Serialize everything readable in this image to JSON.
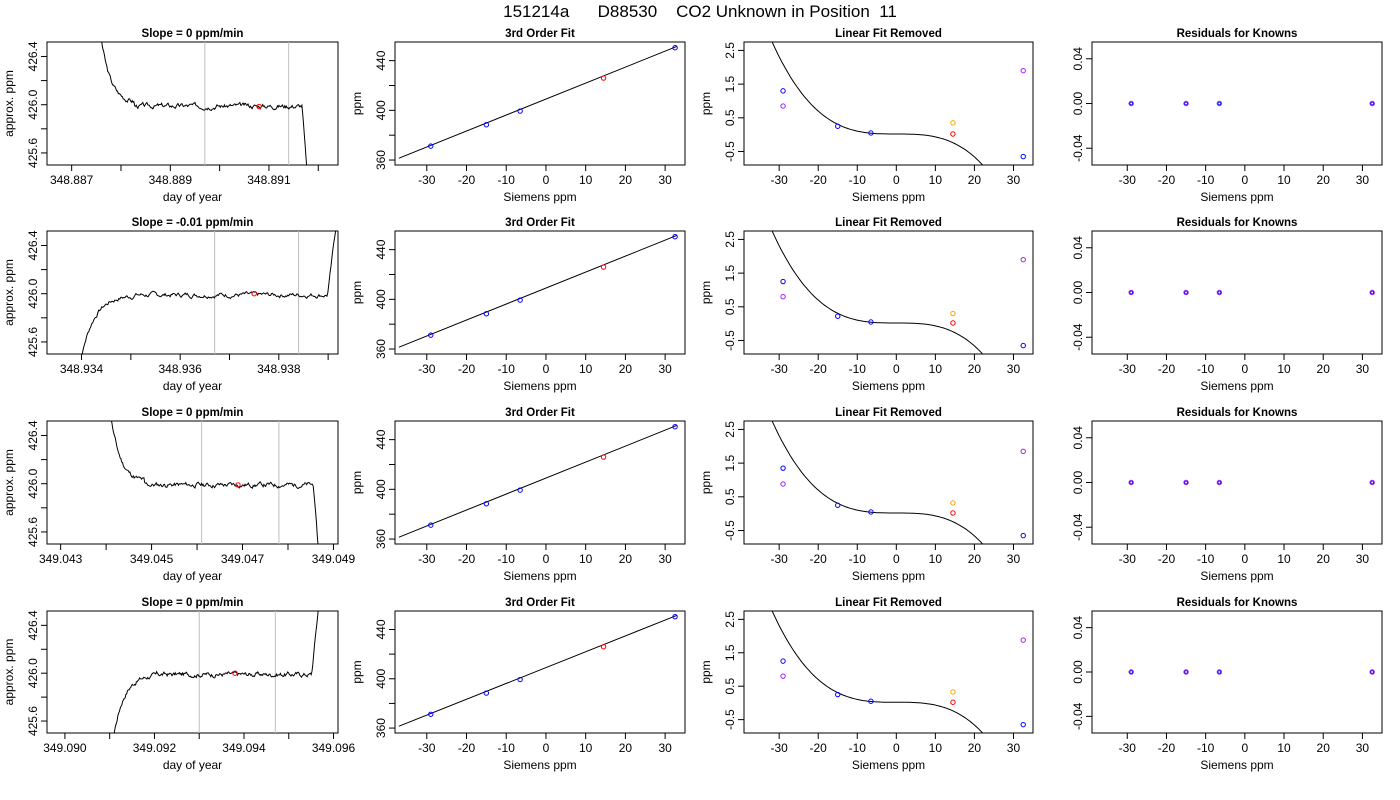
{
  "page_title": "151214a      D88530    CO2 Unknown in Position  11",
  "chart_data": [
    {
      "type": "line",
      "panel": "trace",
      "row": 0,
      "title": "Slope =  0  ppm/min",
      "xlabel": "day of year",
      "ylabel": "approx. ppm",
      "xlim": [
        348.8865,
        348.8924
      ],
      "ylim": [
        425.5,
        426.52
      ],
      "xticks": [
        {
          "v": 348.887,
          "label": "348.887"
        },
        {
          "v": 348.888,
          "label": ""
        },
        {
          "v": 348.889,
          "label": "348.889"
        },
        {
          "v": 348.89,
          "label": ""
        },
        {
          "v": 348.891,
          "label": "348.891"
        },
        {
          "v": 348.892,
          "label": ""
        }
      ],
      "yticks": [
        {
          "v": 425.6,
          "label": "425.6"
        },
        {
          "v": 425.8,
          "label": ""
        },
        {
          "v": 426.0,
          "label": "426.0"
        },
        {
          "v": 426.2,
          "label": ""
        },
        {
          "v": 426.4,
          "label": "426.4"
        }
      ],
      "vlines": [
        348.8897,
        348.8914
      ],
      "t_start": 348.8875,
      "t_end": 348.8918,
      "trace": {
        "seed": 3,
        "shape": "start-high",
        "end": "drop"
      },
      "highlight": {
        "x": 348.8908,
        "y": 425.985
      }
    },
    {
      "type": "line",
      "panel": "fit",
      "row": 0,
      "title": "3rd Order Fit",
      "xlabel": "Siemens ppm",
      "ylabel": "ppm",
      "xlim": [
        -38,
        35
      ],
      "ylim": [
        356,
        455
      ],
      "xticks": [
        -30,
        -20,
        -10,
        0,
        10,
        20,
        30
      ],
      "yticks": [
        {
          "v": 360,
          "label": "360"
        },
        {
          "v": 380,
          "label": ""
        },
        {
          "v": 400,
          "label": "400"
        },
        {
          "v": 420,
          "label": ""
        },
        {
          "v": 440,
          "label": "440"
        }
      ],
      "line": [
        [
          -37,
          361.5
        ],
        [
          33,
          451.5
        ]
      ],
      "points_blue": [
        [
          -29,
          371.2
        ],
        [
          -15,
          388.4
        ],
        [
          -6.5,
          399.4
        ],
        [
          32.5,
          450.4
        ]
      ],
      "points_red": [
        [
          14.5,
          426.0
        ]
      ]
    },
    {
      "type": "scatter",
      "panel": "linres",
      "row": 0,
      "title": "Linear Fit Removed",
      "xlabel": "Siemens ppm",
      "ylabel": "ppm",
      "xlim": [
        -39,
        35
      ],
      "ylim": [
        -0.9,
        2.75
      ],
      "xticks": [
        -30,
        -20,
        -10,
        0,
        10,
        20,
        30
      ],
      "yticks": [
        {
          "v": -0.5,
          "label": "-0.5"
        },
        {
          "v": 0.5,
          "label": "0.5"
        },
        {
          "v": 1.5,
          "label": "1.5"
        },
        {
          "v": 2.5,
          "label": "2.5"
        }
      ],
      "curve": {
        "c0": 0.02,
        "c3": -8.5e-05,
        "xs": -37,
        "xe": 33
      },
      "points_blue": [
        [
          -29,
          1.3
        ],
        [
          -15,
          0.25
        ],
        [
          -6.5,
          0.05
        ],
        [
          32.5,
          -0.65
        ]
      ],
      "points_red": [
        [
          14.5,
          0.02
        ]
      ],
      "points_orange": [
        [
          14.5,
          0.35
        ]
      ],
      "points_purple": [
        [
          -29,
          0.85
        ],
        [
          32.5,
          1.9
        ]
      ]
    },
    {
      "type": "scatter",
      "panel": "resid",
      "row": 0,
      "title": "Residuals for Knowns",
      "xlabel": "Siemens ppm",
      "ylabel": "",
      "xlim": [
        -39,
        35
      ],
      "ylim": [
        -0.055,
        0.055
      ],
      "xticks": [
        -30,
        -20,
        -10,
        0,
        10,
        20,
        30
      ],
      "yticks": [
        {
          "v": -0.04,
          "label": "-0.04"
        },
        {
          "v": 0.0,
          "label": "0.00"
        },
        {
          "v": 0.04,
          "label": "0.04"
        }
      ],
      "points": [
        [
          -29,
          0
        ],
        [
          -15,
          0
        ],
        [
          -6.5,
          0
        ],
        [
          32.5,
          0
        ]
      ]
    },
    {
      "type": "line",
      "panel": "trace",
      "row": 1,
      "title": "Slope =  -0.01  ppm/min",
      "xlabel": "day of year",
      "ylabel": "approx. ppm",
      "xlim": [
        348.9333,
        348.9392
      ],
      "ylim": [
        425.5,
        426.52
      ],
      "xticks": [
        {
          "v": 348.934,
          "label": "348.934"
        },
        {
          "v": 348.935,
          "label": ""
        },
        {
          "v": 348.936,
          "label": "348.936"
        },
        {
          "v": 348.937,
          "label": ""
        },
        {
          "v": 348.938,
          "label": "348.938"
        },
        {
          "v": 348.939,
          "label": ""
        }
      ],
      "yticks": [
        {
          "v": 425.6,
          "label": "425.6"
        },
        {
          "v": 425.8,
          "label": ""
        },
        {
          "v": 426.0,
          "label": "426.0"
        },
        {
          "v": 426.2,
          "label": ""
        },
        {
          "v": 426.4,
          "label": "426.4"
        }
      ],
      "vlines": [
        348.9367,
        348.9384
      ],
      "t_start": 348.9339,
      "t_end": 348.9392,
      "trace": {
        "seed": 7,
        "shape": "start-low",
        "end": "rise"
      },
      "highlight": {
        "x": 348.9375,
        "y": 426.0
      }
    },
    {
      "type": "line",
      "panel": "fit",
      "row": 1,
      "title": "3rd Order Fit",
      "xlabel": "Siemens ppm",
      "ylabel": "ppm",
      "xlim": [
        -38,
        35
      ],
      "ylim": [
        356,
        455
      ],
      "xticks": [
        -30,
        -20,
        -10,
        0,
        10,
        20,
        30
      ],
      "yticks": [
        {
          "v": 360,
          "label": "360"
        },
        {
          "v": 380,
          "label": ""
        },
        {
          "v": 400,
          "label": "400"
        },
        {
          "v": 420,
          "label": ""
        },
        {
          "v": 440,
          "label": "440"
        }
      ],
      "line": [
        [
          -37,
          361.5
        ],
        [
          33,
          451.5
        ]
      ],
      "points_blue": [
        [
          -29,
          371.2
        ],
        [
          -15,
          388.4
        ],
        [
          -6.5,
          399.4
        ],
        [
          32.5,
          450.4
        ]
      ],
      "points_red": [
        [
          14.5,
          426.0
        ]
      ]
    },
    {
      "type": "scatter",
      "panel": "linres",
      "row": 1,
      "title": "Linear Fit Removed",
      "xlabel": "Siemens ppm",
      "ylabel": "ppm",
      "xlim": [
        -39,
        35
      ],
      "ylim": [
        -0.9,
        2.75
      ],
      "xticks": [
        -30,
        -20,
        -10,
        0,
        10,
        20,
        30
      ],
      "yticks": [
        {
          "v": -0.5,
          "label": "-0.5"
        },
        {
          "v": 0.5,
          "label": "0.5"
        },
        {
          "v": 1.5,
          "label": "1.5"
        },
        {
          "v": 2.5,
          "label": "2.5"
        }
      ],
      "curve": {
        "c0": 0.02,
        "c3": -8.5e-05,
        "xs": -37,
        "xe": 33
      },
      "points_blue": [
        [
          -29,
          1.25
        ],
        [
          -15,
          0.22
        ],
        [
          -6.5,
          0.05
        ],
        [
          32.5,
          -0.65
        ]
      ],
      "points_red": [
        [
          14.5,
          0.02
        ]
      ],
      "points_orange": [
        [
          14.5,
          0.3
        ]
      ],
      "points_purple": [
        [
          -29,
          0.8
        ],
        [
          32.5,
          1.9
        ]
      ]
    },
    {
      "type": "scatter",
      "panel": "resid",
      "row": 1,
      "title": "Residuals for Knowns",
      "xlabel": "Siemens ppm",
      "ylabel": "",
      "xlim": [
        -39,
        35
      ],
      "ylim": [
        -0.055,
        0.055
      ],
      "xticks": [
        -30,
        -20,
        -10,
        0,
        10,
        20,
        30
      ],
      "yticks": [
        {
          "v": -0.04,
          "label": "-0.04"
        },
        {
          "v": 0.0,
          "label": "0.00"
        },
        {
          "v": 0.04,
          "label": "0.04"
        }
      ],
      "points": [
        [
          -29,
          0
        ],
        [
          -15,
          0
        ],
        [
          -6.5,
          0
        ],
        [
          32.5,
          0
        ]
      ]
    },
    {
      "type": "line",
      "panel": "trace",
      "row": 2,
      "title": "Slope =  0  ppm/min",
      "xlabel": "day of year",
      "ylabel": "approx. ppm",
      "xlim": [
        349.0427,
        349.0491
      ],
      "ylim": [
        425.5,
        426.52
      ],
      "xticks": [
        {
          "v": 349.043,
          "label": "349.043"
        },
        {
          "v": 349.044,
          "label": ""
        },
        {
          "v": 349.045,
          "label": "349.045"
        },
        {
          "v": 349.046,
          "label": ""
        },
        {
          "v": 349.047,
          "label": "349.047"
        },
        {
          "v": 349.048,
          "label": ""
        },
        {
          "v": 349.049,
          "label": "349.049"
        }
      ],
      "yticks": [
        {
          "v": 425.6,
          "label": "425.6"
        },
        {
          "v": 425.8,
          "label": ""
        },
        {
          "v": 426.0,
          "label": "426.0"
        },
        {
          "v": 426.2,
          "label": ""
        },
        {
          "v": 426.4,
          "label": "426.4"
        }
      ],
      "vlines": [
        349.0461,
        349.0478
      ],
      "t_start": 349.044,
      "t_end": 349.0487,
      "trace": {
        "seed": 11,
        "shape": "start-high",
        "end": "drop"
      },
      "highlight": {
        "x": 349.0469,
        "y": 425.99
      }
    },
    {
      "type": "line",
      "panel": "fit",
      "row": 2,
      "title": "3rd Order Fit",
      "xlabel": "Siemens ppm",
      "ylabel": "ppm",
      "xlim": [
        -38,
        35
      ],
      "ylim": [
        356,
        455
      ],
      "xticks": [
        -30,
        -20,
        -10,
        0,
        10,
        20,
        30
      ],
      "yticks": [
        {
          "v": 360,
          "label": "360"
        },
        {
          "v": 380,
          "label": ""
        },
        {
          "v": 400,
          "label": "400"
        },
        {
          "v": 420,
          "label": ""
        },
        {
          "v": 440,
          "label": "440"
        }
      ],
      "line": [
        [
          -37,
          361.5
        ],
        [
          33,
          451.5
        ]
      ],
      "points_blue": [
        [
          -29,
          371.2
        ],
        [
          -15,
          388.4
        ],
        [
          -6.5,
          399.4
        ],
        [
          32.5,
          450.4
        ]
      ],
      "points_red": [
        [
          14.5,
          426.0
        ]
      ]
    },
    {
      "type": "scatter",
      "panel": "linres",
      "row": 2,
      "title": "Linear Fit Removed",
      "xlabel": "Siemens ppm",
      "ylabel": "ppm",
      "xlim": [
        -39,
        35
      ],
      "ylim": [
        -0.9,
        2.75
      ],
      "xticks": [
        -30,
        -20,
        -10,
        0,
        10,
        20,
        30
      ],
      "yticks": [
        {
          "v": -0.5,
          "label": "-0.5"
        },
        {
          "v": 0.5,
          "label": "0.5"
        },
        {
          "v": 1.5,
          "label": "1.5"
        },
        {
          "v": 2.5,
          "label": "2.5"
        }
      ],
      "curve": {
        "c0": 0.02,
        "c3": -8.5e-05,
        "xs": -37,
        "xe": 33
      },
      "points_blue": [
        [
          -29,
          1.35
        ],
        [
          -15,
          0.25
        ],
        [
          -6.5,
          0.05
        ],
        [
          32.5,
          -0.65
        ]
      ],
      "points_red": [
        [
          14.5,
          0.02
        ]
      ],
      "points_orange": [
        [
          14.5,
          0.32
        ]
      ],
      "points_purple": [
        [
          -29,
          0.88
        ],
        [
          32.5,
          1.85
        ]
      ]
    },
    {
      "type": "scatter",
      "panel": "resid",
      "row": 2,
      "title": "Residuals for Knowns",
      "xlabel": "Siemens ppm",
      "ylabel": "",
      "xlim": [
        -39,
        35
      ],
      "ylim": [
        -0.055,
        0.055
      ],
      "xticks": [
        -30,
        -20,
        -10,
        0,
        10,
        20,
        30
      ],
      "yticks": [
        {
          "v": -0.04,
          "label": "-0.04"
        },
        {
          "v": 0.0,
          "label": "0.00"
        },
        {
          "v": 0.04,
          "label": "0.04"
        }
      ],
      "points": [
        [
          -29,
          0
        ],
        [
          -15,
          0
        ],
        [
          -6.5,
          0
        ],
        [
          32.5,
          0
        ]
      ]
    },
    {
      "type": "line",
      "panel": "trace",
      "row": 3,
      "title": "Slope =  0  ppm/min",
      "xlabel": "day of year",
      "ylabel": "approx. ppm",
      "xlim": [
        349.0896,
        349.0961
      ],
      "ylim": [
        425.5,
        426.52
      ],
      "xticks": [
        {
          "v": 349.09,
          "label": "349.090"
        },
        {
          "v": 349.091,
          "label": ""
        },
        {
          "v": 349.092,
          "label": "349.092"
        },
        {
          "v": 349.093,
          "label": ""
        },
        {
          "v": 349.094,
          "label": "349.094"
        },
        {
          "v": 349.095,
          "label": ""
        },
        {
          "v": 349.096,
          "label": "349.096"
        }
      ],
      "yticks": [
        {
          "v": 425.6,
          "label": "425.6"
        },
        {
          "v": 425.8,
          "label": ""
        },
        {
          "v": 426.0,
          "label": "426.0"
        },
        {
          "v": 426.2,
          "label": ""
        },
        {
          "v": 426.4,
          "label": "426.4"
        }
      ],
      "vlines": [
        349.093,
        349.0947
      ],
      "t_start": 349.091,
      "t_end": 349.0957,
      "trace": {
        "seed": 17,
        "shape": "start-low",
        "end": "rise"
      },
      "highlight": {
        "x": 349.0938,
        "y": 426.0
      }
    },
    {
      "type": "line",
      "panel": "fit",
      "row": 3,
      "title": "3rd Order Fit",
      "xlabel": "Siemens ppm",
      "ylabel": "ppm",
      "xlim": [
        -38,
        35
      ],
      "ylim": [
        356,
        455
      ],
      "xticks": [
        -30,
        -20,
        -10,
        0,
        10,
        20,
        30
      ],
      "yticks": [
        {
          "v": 360,
          "label": "360"
        },
        {
          "v": 380,
          "label": ""
        },
        {
          "v": 400,
          "label": "400"
        },
        {
          "v": 420,
          "label": ""
        },
        {
          "v": 440,
          "label": "440"
        }
      ],
      "line": [
        [
          -37,
          361.5
        ],
        [
          33,
          451.5
        ]
      ],
      "points_blue": [
        [
          -29,
          371.2
        ],
        [
          -15,
          388.4
        ],
        [
          -6.5,
          399.4
        ],
        [
          32.5,
          450.4
        ]
      ],
      "points_red": [
        [
          14.5,
          426.0
        ]
      ]
    },
    {
      "type": "scatter",
      "panel": "linres",
      "row": 3,
      "title": "Linear Fit Removed",
      "xlabel": "Siemens ppm",
      "ylabel": "ppm",
      "xlim": [
        -39,
        35
      ],
      "ylim": [
        -0.9,
        2.75
      ],
      "xticks": [
        -30,
        -20,
        -10,
        0,
        10,
        20,
        30
      ],
      "yticks": [
        {
          "v": -0.5,
          "label": "-0.5"
        },
        {
          "v": 0.5,
          "label": "0.5"
        },
        {
          "v": 1.5,
          "label": "1.5"
        },
        {
          "v": 2.5,
          "label": "2.5"
        }
      ],
      "curve": {
        "c0": 0.02,
        "c3": -8.5e-05,
        "xs": -37,
        "xe": 33
      },
      "points_blue": [
        [
          -29,
          1.25
        ],
        [
          -15,
          0.25
        ],
        [
          -6.5,
          0.05
        ],
        [
          32.5,
          -0.65
        ]
      ],
      "points_red": [
        [
          14.5,
          0.02
        ]
      ],
      "points_orange": [
        [
          14.5,
          0.33
        ]
      ],
      "points_purple": [
        [
          -29,
          0.8
        ],
        [
          32.5,
          1.88
        ]
      ]
    },
    {
      "type": "scatter",
      "panel": "resid",
      "row": 3,
      "title": "Residuals for Knowns",
      "xlabel": "Siemens ppm",
      "ylabel": "",
      "xlim": [
        -39,
        35
      ],
      "ylim": [
        -0.055,
        0.055
      ],
      "xticks": [
        -30,
        -20,
        -10,
        0,
        10,
        20,
        30
      ],
      "yticks": [
        {
          "v": -0.04,
          "label": "-0.04"
        },
        {
          "v": 0.0,
          "label": "0.00"
        },
        {
          "v": 0.04,
          "label": "0.04"
        }
      ],
      "points": [
        [
          -29,
          0
        ],
        [
          -15,
          0
        ],
        [
          -6.5,
          0
        ],
        [
          32.5,
          0
        ]
      ]
    }
  ],
  "colors": {
    "blue": "#0000ff",
    "red": "#ff0000",
    "orange": "#ffa500",
    "purple": "#a020f0",
    "vline": "#bebebe",
    "axis": "#000000"
  }
}
